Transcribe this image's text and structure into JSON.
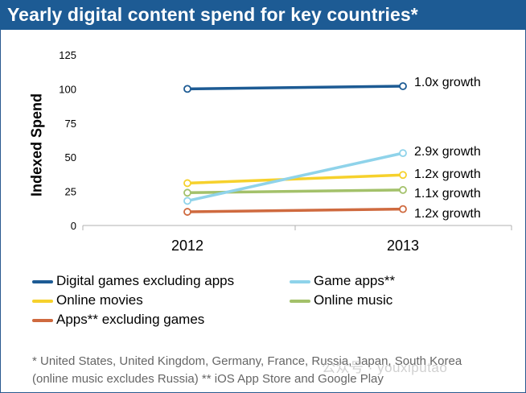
{
  "header": {
    "title": "Yearly digital content spend for key countries*"
  },
  "chart_data": {
    "type": "line",
    "title": "Yearly digital content spend for key countries*",
    "ylabel": "Indexed Spend",
    "xlabel": "",
    "ylim": [
      0,
      125
    ],
    "yticks": [
      0,
      25,
      50,
      75,
      100,
      125
    ],
    "categories": [
      "2012",
      "2013"
    ],
    "grid": false,
    "series": [
      {
        "name": "Digital games excluding apps",
        "color": "#1d5b94",
        "values": [
          100,
          102
        ],
        "annotation": "1.0x growth"
      },
      {
        "name": "Game apps**",
        "color": "#8fd3ea",
        "values": [
          18,
          53
        ],
        "annotation": "2.9x growth"
      },
      {
        "name": "Online movies",
        "color": "#f6d12c",
        "values": [
          31,
          37
        ],
        "annotation": "1.2x growth"
      },
      {
        "name": "Online music",
        "color": "#a3c16a",
        "values": [
          24,
          26
        ],
        "annotation": "1.1x growth"
      },
      {
        "name": "Apps** excluding games",
        "color": "#cf6a3f",
        "values": [
          10,
          12
        ],
        "annotation": "1.2x growth"
      }
    ]
  },
  "footnotes": [
    "* United States, United Kingdom, Germany, France, Russia, Japan, South Korea",
    "(online music excludes Russia) ** iOS App Store and Google Play"
  ],
  "watermark": "公众号 · youxiputao"
}
